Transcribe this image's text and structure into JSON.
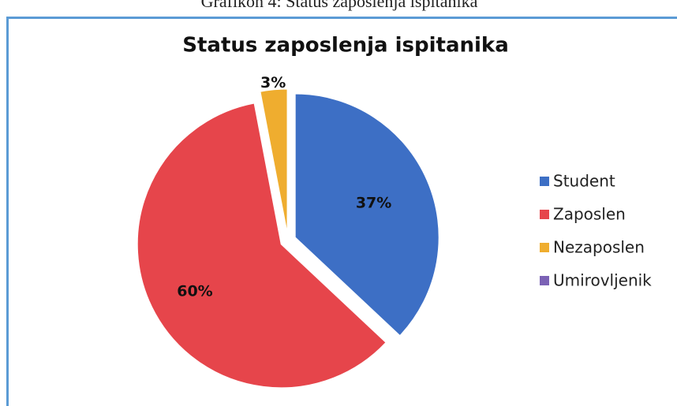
{
  "caption": "Grafikon 4: Status zaposlenja ispitanika",
  "chart_data": {
    "type": "pie",
    "title": "Status zaposlenja ispitanika",
    "categories": [
      "Student",
      "Zaposlen",
      "Nezaposlen",
      "Umirovljenik"
    ],
    "values": [
      37,
      60,
      3,
      0
    ],
    "value_labels": [
      "37%",
      "60%",
      "3%",
      null
    ],
    "colors": [
      "#3d6fc5",
      "#e6454b",
      "#efad2f",
      "#7b62b5"
    ],
    "exploded": true,
    "legend": "right"
  }
}
